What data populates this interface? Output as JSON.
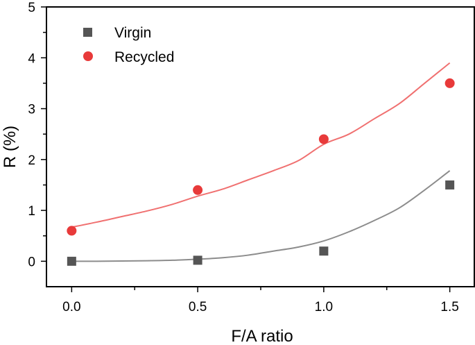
{
  "chart_data": {
    "type": "scatter",
    "title": "",
    "xlabel": "F/A ratio",
    "ylabel": "R (%)",
    "xlim": [
      -0.1,
      1.6
    ],
    "ylim": [
      -0.5,
      5
    ],
    "x_ticks": [
      0.0,
      0.5,
      1.0,
      1.5
    ],
    "x_tick_labels": [
      "0.0",
      "0.5",
      "1.0",
      "1.5"
    ],
    "y_ticks": [
      0,
      1,
      2,
      3,
      4,
      5
    ],
    "y_tick_labels": [
      "0",
      "1",
      "2",
      "3",
      "4",
      "5"
    ],
    "grid": false,
    "legend_position": "top-left",
    "series": [
      {
        "name": "Virgin",
        "marker": "square",
        "color": "#555555",
        "fit_color": "#8c8c8c",
        "x": [
          0.0,
          0.5,
          1.0,
          1.5
        ],
        "y": [
          0.0,
          0.02,
          0.2,
          1.5
        ],
        "fit_x": [
          0.0,
          0.1,
          0.2,
          0.3,
          0.4,
          0.5,
          0.6,
          0.7,
          0.8,
          0.9,
          1.0,
          1.1,
          1.2,
          1.3,
          1.4,
          1.5
        ],
        "fit_y": [
          0.0,
          0.0,
          0.005,
          0.01,
          0.02,
          0.04,
          0.07,
          0.12,
          0.2,
          0.28,
          0.4,
          0.58,
          0.8,
          1.05,
          1.4,
          1.78
        ]
      },
      {
        "name": "Recycled",
        "marker": "circle",
        "color": "#e83a3a",
        "fit_color": "#f07070",
        "x": [
          0.0,
          0.5,
          1.0,
          1.5
        ],
        "y": [
          0.6,
          1.4,
          2.4,
          3.5
        ],
        "fit_x": [
          0.0,
          0.1,
          0.2,
          0.3,
          0.4,
          0.5,
          0.6,
          0.7,
          0.8,
          0.9,
          1.0,
          1.1,
          1.2,
          1.3,
          1.4,
          1.5
        ],
        "fit_y": [
          0.67,
          0.77,
          0.88,
          0.99,
          1.12,
          1.28,
          1.42,
          1.6,
          1.78,
          1.98,
          2.3,
          2.5,
          2.8,
          3.1,
          3.5,
          3.9
        ]
      }
    ]
  }
}
